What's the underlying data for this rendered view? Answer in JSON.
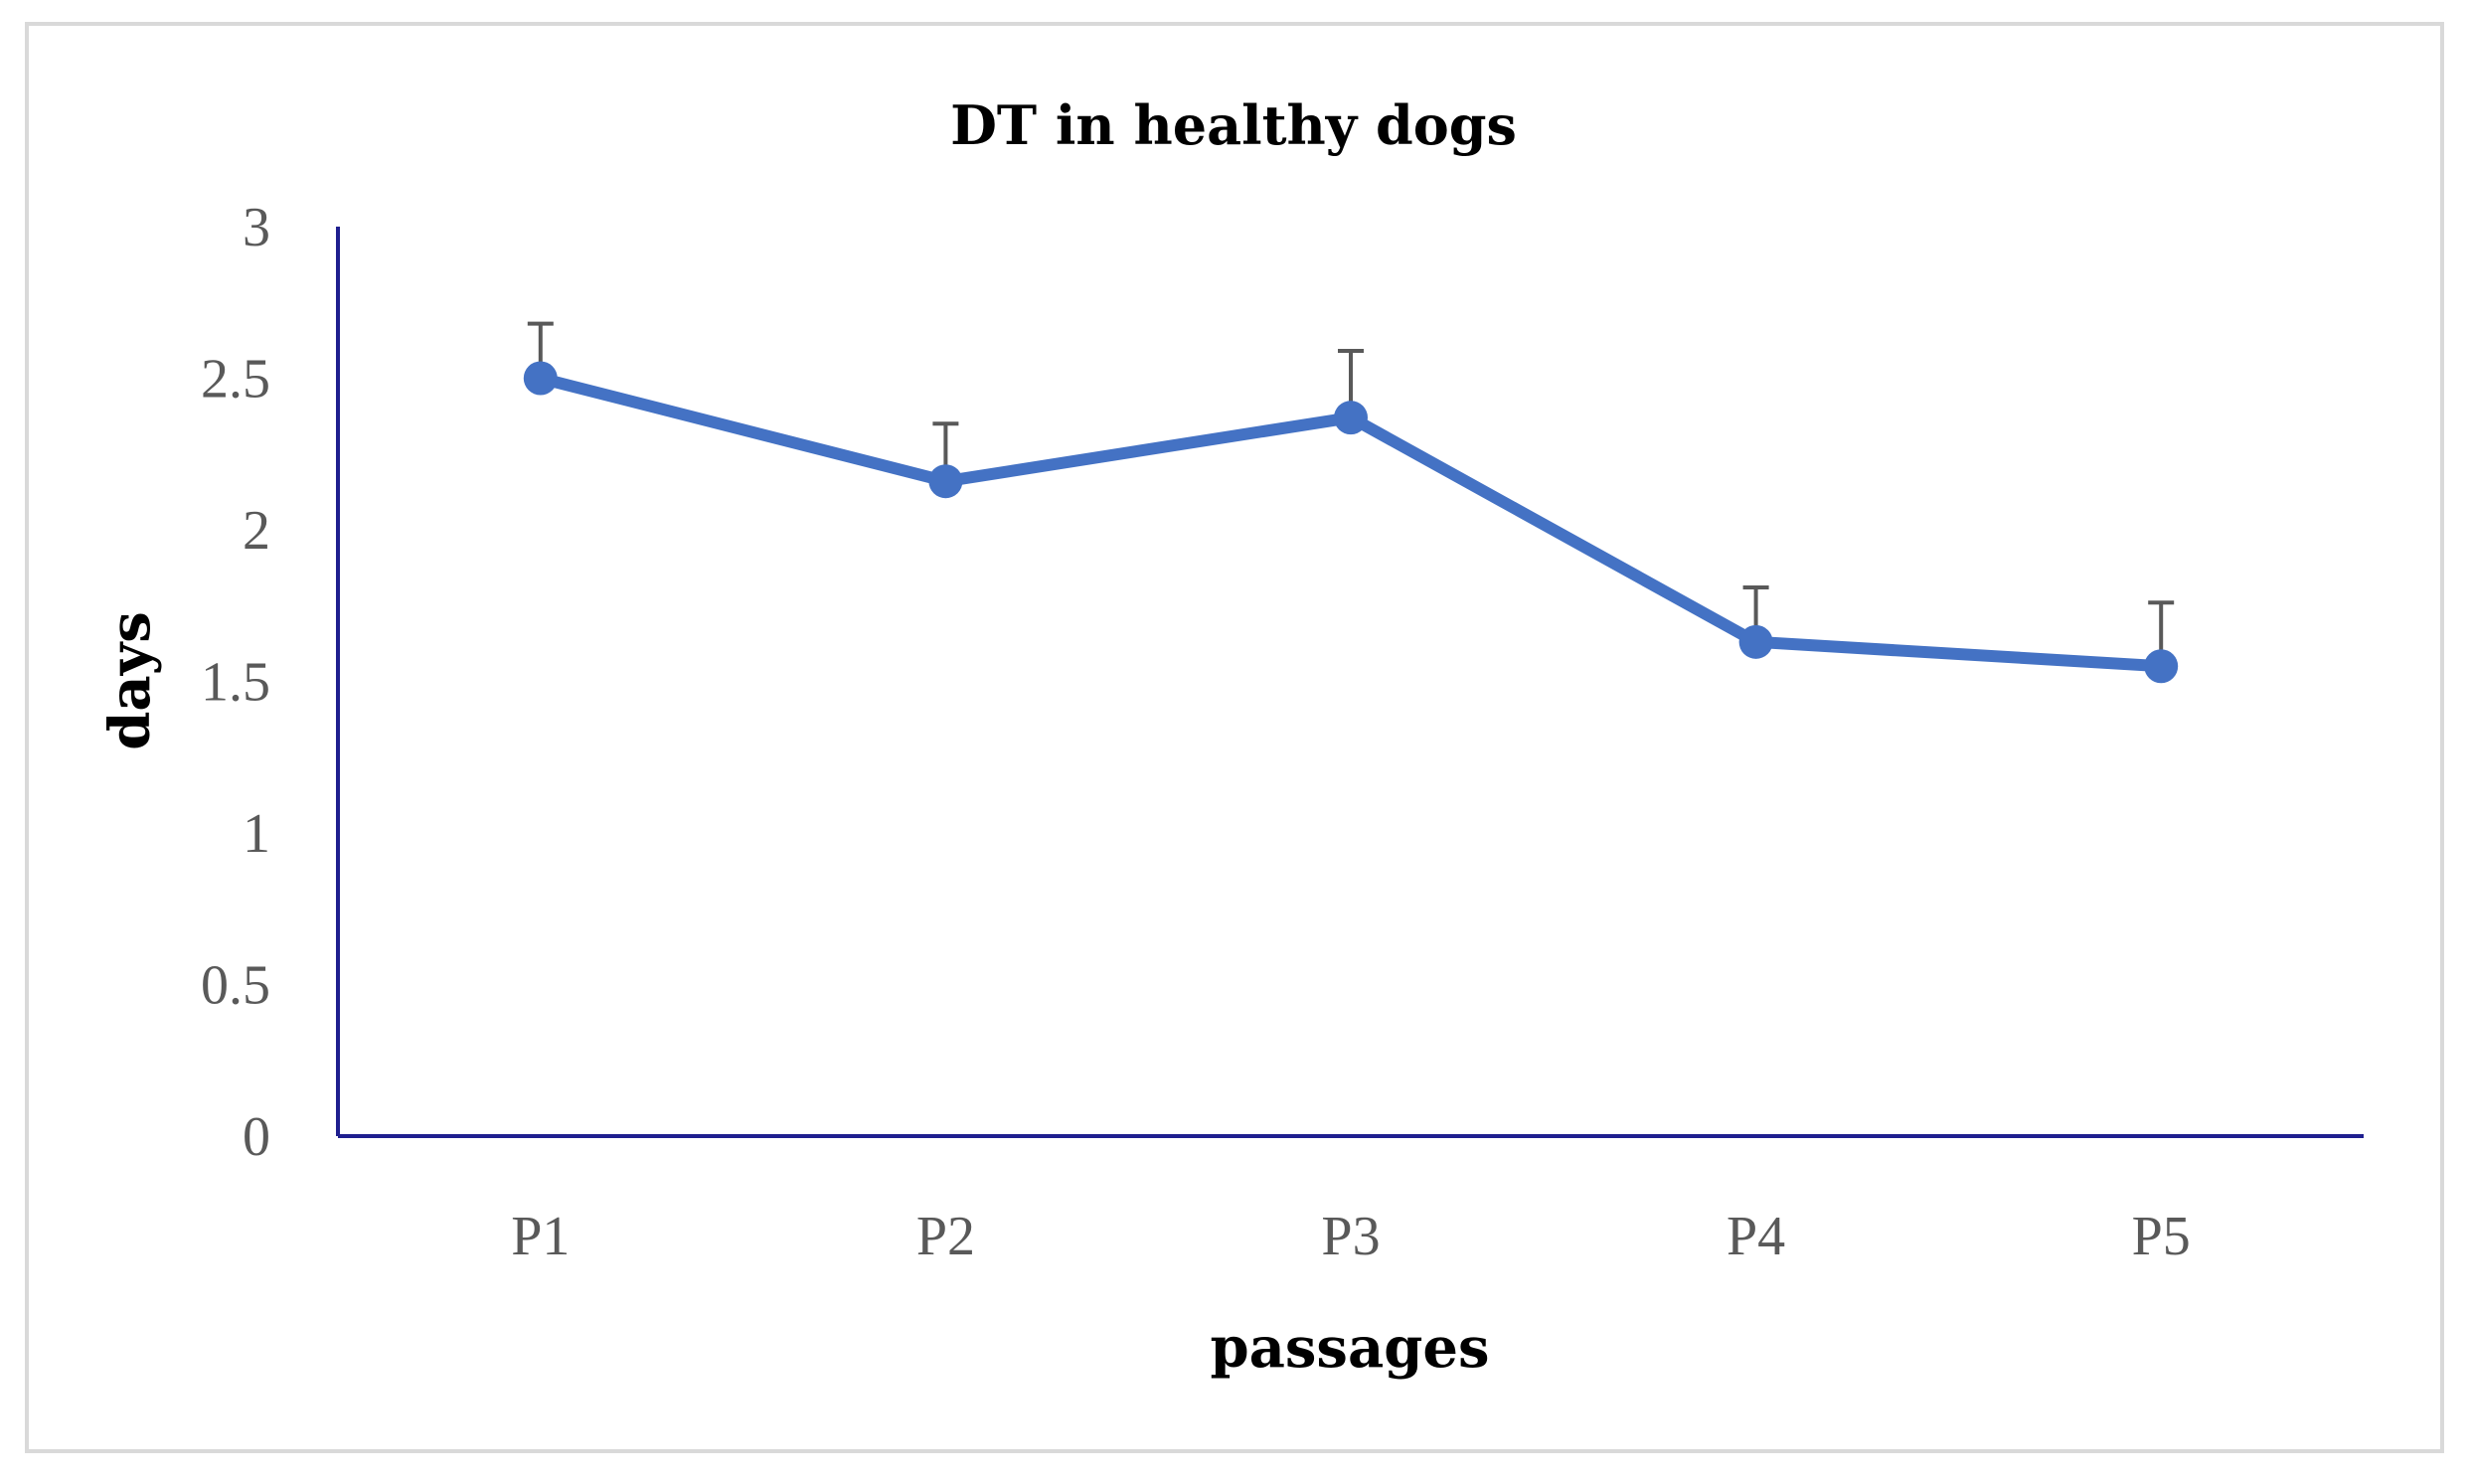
{
  "chart_data": {
    "type": "line",
    "title": "DT in healthy dogs",
    "xlabel": "passages",
    "ylabel": "days",
    "categories": [
      "P1",
      "P2",
      "P3",
      "P4",
      "P5"
    ],
    "series": [
      {
        "name": "DT",
        "values": [
          2.5,
          2.16,
          2.37,
          1.63,
          1.55
        ],
        "error_plus": [
          0.18,
          0.19,
          0.22,
          0.18,
          0.21
        ],
        "color": "#4472c4"
      }
    ],
    "ylim": [
      0,
      3
    ],
    "yticks": [
      "0",
      "0.5",
      "1",
      "1.5",
      "2",
      "2.5",
      "3"
    ],
    "grid": false,
    "axis_color": "#1f1f8f",
    "error_bar_color": "#595959"
  }
}
